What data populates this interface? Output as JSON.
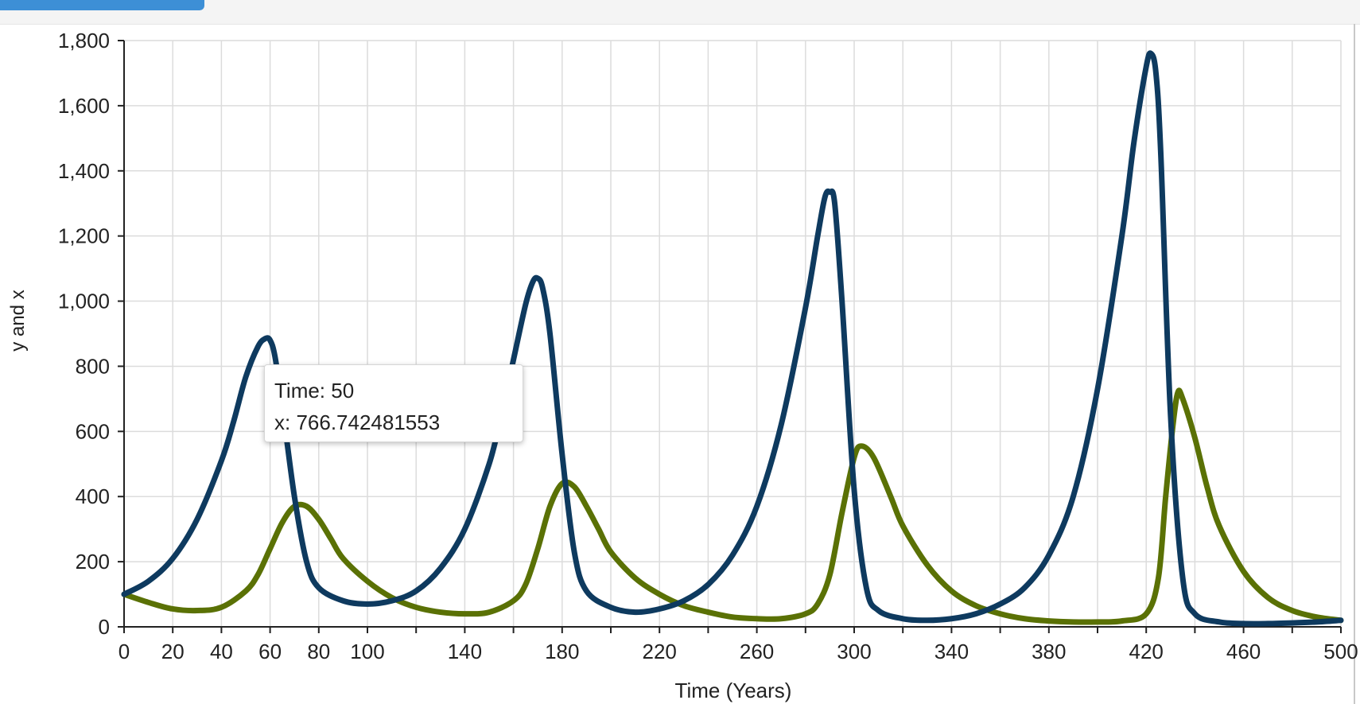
{
  "progress": {
    "value": 0.15,
    "color": "#3d8fd6"
  },
  "tooltip": {
    "line1": "Time: 50",
    "line2": "x: 766.742481553"
  },
  "chart_data": {
    "type": "line",
    "title": "",
    "xlabel": "Time (Years)",
    "ylabel": "y and x",
    "xlim": [
      0,
      500
    ],
    "ylim": [
      0,
      1800
    ],
    "grid": true,
    "xticks": [
      0,
      20,
      40,
      60,
      80,
      100,
      140,
      180,
      220,
      260,
      300,
      340,
      380,
      420,
      460,
      500
    ],
    "xtick_labels": [
      "0",
      "20",
      "40",
      "60",
      "80",
      "100",
      "140",
      "180",
      "220",
      "260",
      "300",
      "340",
      "380",
      "420",
      "460",
      "500"
    ],
    "xgrid": [
      0,
      20,
      40,
      60,
      80,
      100,
      120,
      140,
      160,
      180,
      200,
      220,
      240,
      260,
      280,
      300,
      320,
      340,
      360,
      380,
      400,
      420,
      440,
      460,
      480,
      500
    ],
    "yticks": [
      0,
      200,
      400,
      600,
      800,
      1000,
      1200,
      1400,
      1600,
      1800
    ],
    "ytick_labels": [
      "0",
      "200",
      "400",
      "600",
      "800",
      "1,000",
      "1,200",
      "1,400",
      "1,600",
      "1,800"
    ],
    "series": [
      {
        "color": "#0e3a5f",
        "x": [
          0,
          10,
          20,
          30,
          40,
          45,
          50,
          55,
          58,
          60,
          62,
          65,
          70,
          75,
          80,
          90,
          100,
          110,
          120,
          130,
          140,
          150,
          155,
          160,
          165,
          168,
          170,
          172,
          175,
          180,
          185,
          190,
          200,
          210,
          220,
          230,
          240,
          250,
          260,
          270,
          280,
          285,
          288,
          290,
          292,
          295,
          300,
          305,
          310,
          320,
          330,
          340,
          350,
          360,
          370,
          380,
          390,
          400,
          410,
          415,
          420,
          422,
          424,
          426,
          430,
          435,
          440,
          450,
          460,
          470,
          480,
          490,
          500
        ],
        "y": [
          100,
          140,
          210,
          330,
          510,
          630,
          767,
          860,
          885,
          880,
          830,
          680,
          400,
          200,
          120,
          80,
          70,
          80,
          110,
          180,
          300,
          500,
          650,
          820,
          990,
          1060,
          1070,
          1040,
          900,
          530,
          230,
          110,
          60,
          45,
          55,
          80,
          130,
          220,
          370,
          620,
          980,
          1200,
          1320,
          1335,
          1300,
          1000,
          420,
          120,
          50,
          25,
          20,
          25,
          40,
          70,
          120,
          220,
          400,
          730,
          1200,
          1490,
          1720,
          1760,
          1700,
          1450,
          650,
          150,
          40,
          15,
          10,
          10,
          12,
          15,
          20
        ]
      },
      {
        "color": "#5a7105",
        "x": [
          0,
          10,
          20,
          30,
          40,
          50,
          55,
          60,
          65,
          70,
          75,
          80,
          85,
          90,
          100,
          110,
          120,
          130,
          140,
          150,
          160,
          165,
          170,
          175,
          180,
          185,
          190,
          195,
          200,
          210,
          220,
          230,
          240,
          250,
          260,
          270,
          280,
          285,
          290,
          295,
          300,
          303,
          308,
          315,
          320,
          330,
          340,
          350,
          360,
          370,
          380,
          390,
          400,
          410,
          420,
          425,
          428,
          431,
          433,
          435,
          440,
          445,
          450,
          460,
          470,
          480,
          490,
          500
        ],
        "y": [
          100,
          75,
          55,
          50,
          60,
          110,
          160,
          240,
          320,
          370,
          370,
          330,
          270,
          210,
          140,
          90,
          60,
          45,
          40,
          45,
          80,
          130,
          240,
          370,
          440,
          430,
          370,
          300,
          230,
          150,
          100,
          65,
          45,
          30,
          25,
          25,
          40,
          70,
          160,
          350,
          520,
          555,
          520,
          400,
          310,
          190,
          110,
          65,
          40,
          25,
          18,
          15,
          15,
          18,
          40,
          150,
          400,
          620,
          720,
          700,
          580,
          430,
          310,
          170,
          90,
          50,
          30,
          20
        ]
      }
    ]
  }
}
